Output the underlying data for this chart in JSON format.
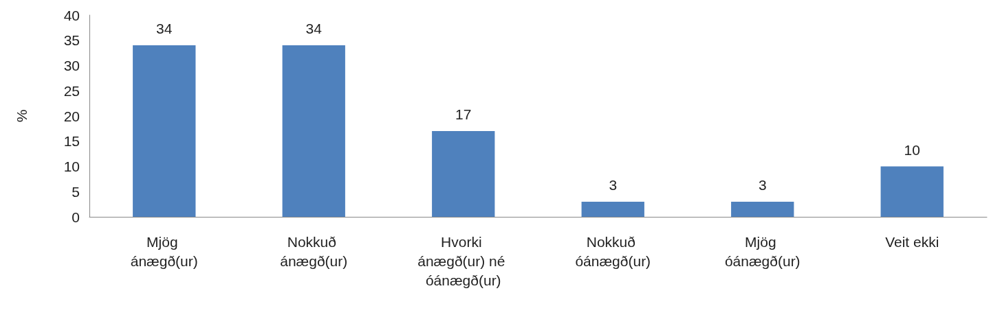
{
  "chart_data": {
    "type": "bar",
    "ylabel": "%",
    "categories": [
      "Mjög ánægð(ur)",
      "Nokkuð ánægð(ur)",
      "Hvorki ánægð(ur) né óánægð(ur)",
      "Nokkuð óánægð(ur)",
      "Mjög óánægð(ur)",
      "Veit ekki"
    ],
    "values": [
      34,
      34,
      17,
      3,
      3,
      10
    ],
    "color": "#4f81bd",
    "ylim": [
      0,
      40
    ],
    "yticks": [
      0,
      5,
      10,
      15,
      20,
      25,
      30,
      35,
      40
    ],
    "data_labels": true,
    "grid": false
  }
}
